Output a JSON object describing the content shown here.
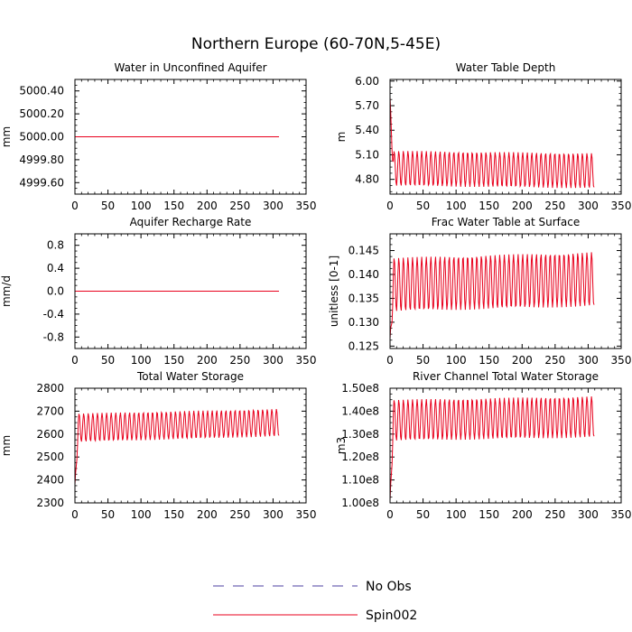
{
  "figure_title": "Northern Europe (60-70N,5-45E)",
  "legend": [
    {
      "label": "No Obs",
      "color": "#4b3fa0",
      "dash": true
    },
    {
      "label": "Spin002",
      "color": "#e8001c",
      "dash": false
    }
  ],
  "chart_data": [
    {
      "type": "line",
      "title": "Water in Unconfined Aquifer",
      "xlabel": "",
      "ylabel": "mm",
      "xlim": [
        0,
        350
      ],
      "ylim": [
        4999.5,
        5000.5
      ],
      "xticks": [
        0,
        50,
        100,
        150,
        200,
        250,
        300,
        350
      ],
      "yticks": [
        "4999.60",
        "4999.80",
        "5000.00",
        "5000.20",
        "5000.40"
      ],
      "series": [
        {
          "name": "Spin002",
          "kind": "constant",
          "value": 5000.0,
          "n": 310
        }
      ]
    },
    {
      "type": "line",
      "title": "Water Table Depth",
      "xlabel": "",
      "ylabel": "m",
      "xlim": [
        0,
        350
      ],
      "ylim": [
        4.62,
        6.02
      ],
      "xticks": [
        0,
        50,
        100,
        150,
        200,
        250,
        300,
        350
      ],
      "yticks": [
        "4.80",
        "5.10",
        "5.40",
        "5.70",
        "6.00"
      ],
      "series": [
        {
          "name": "Spin002",
          "kind": "seasonal",
          "n": 310,
          "start": 5.8,
          "min_first": 4.72,
          "max_first": 5.15,
          "min_last": 4.69,
          "max_last": 5.12
        }
      ]
    },
    {
      "type": "line",
      "title": "Aquifer Recharge Rate",
      "xlabel": "",
      "ylabel": "mm/d",
      "xlim": [
        0,
        350
      ],
      "ylim": [
        -1.0,
        1.0
      ],
      "xticks": [
        0,
        50,
        100,
        150,
        200,
        250,
        300,
        350
      ],
      "yticks": [
        "-0.8",
        "-0.4",
        "0.0",
        "0.4",
        "0.8"
      ],
      "series": [
        {
          "name": "Spin002",
          "kind": "constant",
          "value": 0.0,
          "n": 310
        }
      ]
    },
    {
      "type": "line",
      "title": "Frac Water Table at Surface",
      "xlabel": "",
      "ylabel": "unitless [0-1]",
      "xlim": [
        0,
        350
      ],
      "ylim": [
        0.1245,
        0.1485
      ],
      "xticks": [
        0,
        50,
        100,
        150,
        200,
        250,
        300,
        350
      ],
      "yticks": [
        "0.125",
        "0.130",
        "0.135",
        "0.140",
        "0.145"
      ],
      "series": [
        {
          "name": "Spin002",
          "kind": "seasonal",
          "n": 310,
          "start": 0.1265,
          "min_first": 0.1322,
          "max_first": 0.1435,
          "min_last": 0.1333,
          "max_last": 0.1447
        }
      ]
    },
    {
      "type": "line",
      "title": "Total Water Storage",
      "xlabel": "",
      "ylabel": "mm",
      "xlim": [
        0,
        350
      ],
      "ylim": [
        2300,
        2800
      ],
      "xticks": [
        0,
        50,
        100,
        150,
        200,
        250,
        300,
        350
      ],
      "yticks": [
        "2300",
        "2400",
        "2500",
        "2600",
        "2700",
        "2800"
      ],
      "series": [
        {
          "name": "Spin002",
          "kind": "seasonal",
          "n": 310,
          "start": 2380,
          "min_first": 2565,
          "max_first": 2690,
          "min_last": 2590,
          "max_last": 2710
        }
      ]
    },
    {
      "type": "line",
      "title": "River Channel Total Water Storage",
      "xlabel": "",
      "ylabel": "m3",
      "xlim": [
        0,
        350
      ],
      "ylim": [
        100000000,
        150000000
      ],
      "xticks": [
        0,
        50,
        100,
        150,
        200,
        250,
        300,
        350
      ],
      "yticks": [
        "1.00e8",
        "1.10e8",
        "1.20e8",
        "1.30e8",
        "1.40e8",
        "1.50e8"
      ],
      "series": [
        {
          "name": "Spin002",
          "kind": "seasonal",
          "n": 310,
          "start": 101000000,
          "min_first": 127000000,
          "max_first": 145000000,
          "min_last": 128500000,
          "max_last": 146500000
        }
      ]
    }
  ]
}
